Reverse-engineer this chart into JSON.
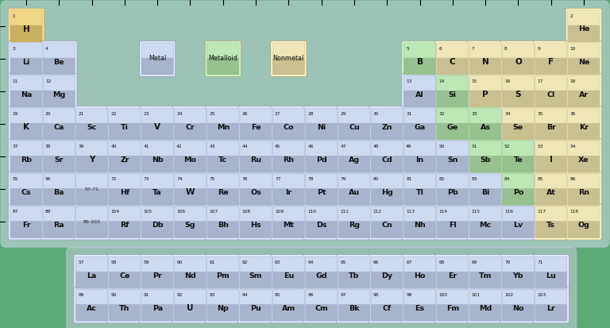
{
  "background_color": "#5aaa78",
  "metal_color_top": "#c8d0e0",
  "metal_color_bot": "#a8b4cc",
  "nonmetal_color_top": "#e0d8a8",
  "nonmetal_color_bot": "#c8c090",
  "metalloid_color_top": "#b8d8b0",
  "metalloid_color_bot": "#98c090",
  "h_color_top": "#e8d898",
  "h_color_bot": "#c8b870",
  "he_color_top": "#e0d8a8",
  "he_color_bot": "#c8c090",
  "elements": [
    {
      "symbol": "H",
      "number": 1,
      "row": 1,
      "col": 1,
      "type": "h"
    },
    {
      "symbol": "He",
      "number": 2,
      "row": 1,
      "col": 18,
      "type": "nonmetal"
    },
    {
      "symbol": "Li",
      "number": 3,
      "row": 2,
      "col": 1,
      "type": "metal"
    },
    {
      "symbol": "Be",
      "number": 4,
      "row": 2,
      "col": 2,
      "type": "metal"
    },
    {
      "symbol": "B",
      "number": 5,
      "row": 2,
      "col": 13,
      "type": "metalloid"
    },
    {
      "symbol": "C",
      "number": 6,
      "row": 2,
      "col": 14,
      "type": "nonmetal"
    },
    {
      "symbol": "N",
      "number": 7,
      "row": 2,
      "col": 15,
      "type": "nonmetal"
    },
    {
      "symbol": "O",
      "number": 8,
      "row": 2,
      "col": 16,
      "type": "nonmetal"
    },
    {
      "symbol": "F",
      "number": 9,
      "row": 2,
      "col": 17,
      "type": "nonmetal"
    },
    {
      "symbol": "Ne",
      "number": 10,
      "row": 2,
      "col": 18,
      "type": "nonmetal"
    },
    {
      "symbol": "Na",
      "number": 11,
      "row": 3,
      "col": 1,
      "type": "metal"
    },
    {
      "symbol": "Mg",
      "number": 12,
      "row": 3,
      "col": 2,
      "type": "metal"
    },
    {
      "symbol": "Al",
      "number": 13,
      "row": 3,
      "col": 13,
      "type": "metal"
    },
    {
      "symbol": "Si",
      "number": 14,
      "row": 3,
      "col": 14,
      "type": "metalloid"
    },
    {
      "symbol": "P",
      "number": 15,
      "row": 3,
      "col": 15,
      "type": "nonmetal"
    },
    {
      "symbol": "S",
      "number": 16,
      "row": 3,
      "col": 16,
      "type": "nonmetal"
    },
    {
      "symbol": "Cl",
      "number": 17,
      "row": 3,
      "col": 17,
      "type": "nonmetal"
    },
    {
      "symbol": "Ar",
      "number": 18,
      "row": 3,
      "col": 18,
      "type": "nonmetal"
    },
    {
      "symbol": "K",
      "number": 19,
      "row": 4,
      "col": 1,
      "type": "metal"
    },
    {
      "symbol": "Ca",
      "number": 20,
      "row": 4,
      "col": 2,
      "type": "metal"
    },
    {
      "symbol": "Sc",
      "number": 21,
      "row": 4,
      "col": 3,
      "type": "metal"
    },
    {
      "symbol": "Ti",
      "number": 22,
      "row": 4,
      "col": 4,
      "type": "metal"
    },
    {
      "symbol": "V",
      "number": 23,
      "row": 4,
      "col": 5,
      "type": "metal"
    },
    {
      "symbol": "Cr",
      "number": 24,
      "row": 4,
      "col": 6,
      "type": "metal"
    },
    {
      "symbol": "Mn",
      "number": 25,
      "row": 4,
      "col": 7,
      "type": "metal"
    },
    {
      "symbol": "Fe",
      "number": 26,
      "row": 4,
      "col": 8,
      "type": "metal"
    },
    {
      "symbol": "Co",
      "number": 27,
      "row": 4,
      "col": 9,
      "type": "metal"
    },
    {
      "symbol": "Ni",
      "number": 28,
      "row": 4,
      "col": 10,
      "type": "metal"
    },
    {
      "symbol": "Cu",
      "number": 29,
      "row": 4,
      "col": 11,
      "type": "metal"
    },
    {
      "symbol": "Zn",
      "number": 30,
      "row": 4,
      "col": 12,
      "type": "metal"
    },
    {
      "symbol": "Ga",
      "number": 31,
      "row": 4,
      "col": 13,
      "type": "metal"
    },
    {
      "symbol": "Ge",
      "number": 32,
      "row": 4,
      "col": 14,
      "type": "metalloid"
    },
    {
      "symbol": "As",
      "number": 33,
      "row": 4,
      "col": 15,
      "type": "metalloid"
    },
    {
      "symbol": "Se",
      "number": 34,
      "row": 4,
      "col": 16,
      "type": "nonmetal"
    },
    {
      "symbol": "Br",
      "number": 35,
      "row": 4,
      "col": 17,
      "type": "nonmetal"
    },
    {
      "symbol": "Kr",
      "number": 36,
      "row": 4,
      "col": 18,
      "type": "nonmetal"
    },
    {
      "symbol": "Rb",
      "number": 37,
      "row": 5,
      "col": 1,
      "type": "metal"
    },
    {
      "symbol": "Sr",
      "number": 38,
      "row": 5,
      "col": 2,
      "type": "metal"
    },
    {
      "symbol": "Y",
      "number": 39,
      "row": 5,
      "col": 3,
      "type": "metal"
    },
    {
      "symbol": "Zr",
      "number": 40,
      "row": 5,
      "col": 4,
      "type": "metal"
    },
    {
      "symbol": "Nb",
      "number": 41,
      "row": 5,
      "col": 5,
      "type": "metal"
    },
    {
      "symbol": "Mo",
      "number": 42,
      "row": 5,
      "col": 6,
      "type": "metal"
    },
    {
      "symbol": "Tc",
      "number": 43,
      "row": 5,
      "col": 7,
      "type": "metal"
    },
    {
      "symbol": "Ru",
      "number": 44,
      "row": 5,
      "col": 8,
      "type": "metal"
    },
    {
      "symbol": "Rh",
      "number": 45,
      "row": 5,
      "col": 9,
      "type": "metal"
    },
    {
      "symbol": "Pd",
      "number": 46,
      "row": 5,
      "col": 10,
      "type": "metal"
    },
    {
      "symbol": "Ag",
      "number": 47,
      "row": 5,
      "col": 11,
      "type": "metal"
    },
    {
      "symbol": "Cd",
      "number": 48,
      "row": 5,
      "col": 12,
      "type": "metal"
    },
    {
      "symbol": "In",
      "number": 49,
      "row": 5,
      "col": 13,
      "type": "metal"
    },
    {
      "symbol": "Sn",
      "number": 50,
      "row": 5,
      "col": 14,
      "type": "metal"
    },
    {
      "symbol": "Sb",
      "number": 51,
      "row": 5,
      "col": 15,
      "type": "metalloid"
    },
    {
      "symbol": "Te",
      "number": 52,
      "row": 5,
      "col": 16,
      "type": "metalloid"
    },
    {
      "symbol": "I",
      "number": 53,
      "row": 5,
      "col": 17,
      "type": "nonmetal"
    },
    {
      "symbol": "Xe",
      "number": 54,
      "row": 5,
      "col": 18,
      "type": "nonmetal"
    },
    {
      "symbol": "Cs",
      "number": 55,
      "row": 6,
      "col": 1,
      "type": "metal"
    },
    {
      "symbol": "Ba",
      "number": 56,
      "row": 6,
      "col": 2,
      "type": "metal"
    },
    {
      "symbol": "Hf",
      "number": 72,
      "row": 6,
      "col": 4,
      "type": "metal"
    },
    {
      "symbol": "Ta",
      "number": 73,
      "row": 6,
      "col": 5,
      "type": "metal"
    },
    {
      "symbol": "W",
      "number": 74,
      "row": 6,
      "col": 6,
      "type": "metal"
    },
    {
      "symbol": "Re",
      "number": 75,
      "row": 6,
      "col": 7,
      "type": "metal"
    },
    {
      "symbol": "Os",
      "number": 76,
      "row": 6,
      "col": 8,
      "type": "metal"
    },
    {
      "symbol": "Ir",
      "number": 77,
      "row": 6,
      "col": 9,
      "type": "metal"
    },
    {
      "symbol": "Pt",
      "number": 78,
      "row": 6,
      "col": 10,
      "type": "metal"
    },
    {
      "symbol": "Au",
      "number": 79,
      "row": 6,
      "col": 11,
      "type": "metal"
    },
    {
      "symbol": "Hg",
      "number": 80,
      "row": 6,
      "col": 12,
      "type": "metal"
    },
    {
      "symbol": "Tl",
      "number": 81,
      "row": 6,
      "col": 13,
      "type": "metal"
    },
    {
      "symbol": "Pb",
      "number": 82,
      "row": 6,
      "col": 14,
      "type": "metal"
    },
    {
      "symbol": "Bi",
      "number": 83,
      "row": 6,
      "col": 15,
      "type": "metal"
    },
    {
      "symbol": "Po",
      "number": 84,
      "row": 6,
      "col": 16,
      "type": "metalloid"
    },
    {
      "symbol": "At",
      "number": 85,
      "row": 6,
      "col": 17,
      "type": "nonmetal"
    },
    {
      "symbol": "Rn",
      "number": 86,
      "row": 6,
      "col": 18,
      "type": "nonmetal"
    },
    {
      "symbol": "Fr",
      "number": 87,
      "row": 7,
      "col": 1,
      "type": "metal"
    },
    {
      "symbol": "Ra",
      "number": 88,
      "row": 7,
      "col": 2,
      "type": "metal"
    },
    {
      "symbol": "Rf",
      "number": 104,
      "row": 7,
      "col": 4,
      "type": "metal"
    },
    {
      "symbol": "Db",
      "number": 105,
      "row": 7,
      "col": 5,
      "type": "metal"
    },
    {
      "symbol": "Sg",
      "number": 106,
      "row": 7,
      "col": 6,
      "type": "metal"
    },
    {
      "symbol": "Bh",
      "number": 107,
      "row": 7,
      "col": 7,
      "type": "metal"
    },
    {
      "symbol": "Hs",
      "number": 108,
      "row": 7,
      "col": 8,
      "type": "metal"
    },
    {
      "symbol": "Mt",
      "number": 109,
      "row": 7,
      "col": 9,
      "type": "metal"
    },
    {
      "symbol": "Ds",
      "number": 110,
      "row": 7,
      "col": 10,
      "type": "metal"
    },
    {
      "symbol": "Rg",
      "number": 111,
      "row": 7,
      "col": 11,
      "type": "metal"
    },
    {
      "symbol": "Cn",
      "number": 112,
      "row": 7,
      "col": 12,
      "type": "metal"
    },
    {
      "symbol": "Nh",
      "number": 113,
      "row": 7,
      "col": 13,
      "type": "metal"
    },
    {
      "symbol": "Fl",
      "number": 114,
      "row": 7,
      "col": 14,
      "type": "metal"
    },
    {
      "symbol": "Mc",
      "number": 115,
      "row": 7,
      "col": 15,
      "type": "metal"
    },
    {
      "symbol": "Lv",
      "number": 116,
      "row": 7,
      "col": 16,
      "type": "metal"
    },
    {
      "symbol": "Ts",
      "number": 117,
      "row": 7,
      "col": 17,
      "type": "nonmetal"
    },
    {
      "symbol": "Og",
      "number": 118,
      "row": 7,
      "col": 18,
      "type": "nonmetal"
    },
    {
      "symbol": "La",
      "number": 57,
      "row": 9,
      "col": 3,
      "type": "metal"
    },
    {
      "symbol": "Ce",
      "number": 58,
      "row": 9,
      "col": 4,
      "type": "metal"
    },
    {
      "symbol": "Pr",
      "number": 59,
      "row": 9,
      "col": 5,
      "type": "metal"
    },
    {
      "symbol": "Nd",
      "number": 60,
      "row": 9,
      "col": 6,
      "type": "metal"
    },
    {
      "symbol": "Pm",
      "number": 61,
      "row": 9,
      "col": 7,
      "type": "metal"
    },
    {
      "symbol": "Sm",
      "number": 62,
      "row": 9,
      "col": 8,
      "type": "metal"
    },
    {
      "symbol": "Eu",
      "number": 63,
      "row": 9,
      "col": 9,
      "type": "metal"
    },
    {
      "symbol": "Gd",
      "number": 64,
      "row": 9,
      "col": 10,
      "type": "metal"
    },
    {
      "symbol": "Tb",
      "number": 65,
      "row": 9,
      "col": 11,
      "type": "metal"
    },
    {
      "symbol": "Dy",
      "number": 66,
      "row": 9,
      "col": 12,
      "type": "metal"
    },
    {
      "symbol": "Ho",
      "number": 67,
      "row": 9,
      "col": 13,
      "type": "metal"
    },
    {
      "symbol": "Er",
      "number": 68,
      "row": 9,
      "col": 14,
      "type": "metal"
    },
    {
      "symbol": "Tm",
      "number": 69,
      "row": 9,
      "col": 15,
      "type": "metal"
    },
    {
      "symbol": "Yb",
      "number": 70,
      "row": 9,
      "col": 16,
      "type": "metal"
    },
    {
      "symbol": "Lu",
      "number": 71,
      "row": 9,
      "col": 17,
      "type": "metal"
    },
    {
      "symbol": "Ac",
      "number": 89,
      "row": 10,
      "col": 3,
      "type": "metal"
    },
    {
      "symbol": "Th",
      "number": 90,
      "row": 10,
      "col": 4,
      "type": "metal"
    },
    {
      "symbol": "Pa",
      "number": 91,
      "row": 10,
      "col": 5,
      "type": "metal"
    },
    {
      "symbol": "U",
      "number": 92,
      "row": 10,
      "col": 6,
      "type": "metal"
    },
    {
      "symbol": "Np",
      "number": 93,
      "row": 10,
      "col": 7,
      "type": "metal"
    },
    {
      "symbol": "Pu",
      "number": 94,
      "row": 10,
      "col": 8,
      "type": "metal"
    },
    {
      "symbol": "Am",
      "number": 95,
      "row": 10,
      "col": 9,
      "type": "metal"
    },
    {
      "symbol": "Cm",
      "number": 96,
      "row": 10,
      "col": 10,
      "type": "metal"
    },
    {
      "symbol": "Bk",
      "number": 97,
      "row": 10,
      "col": 11,
      "type": "metal"
    },
    {
      "symbol": "Cf",
      "number": 98,
      "row": 10,
      "col": 12,
      "type": "metal"
    },
    {
      "symbol": "Es",
      "number": 99,
      "row": 10,
      "col": 13,
      "type": "metal"
    },
    {
      "symbol": "Fm",
      "number": 100,
      "row": 10,
      "col": 14,
      "type": "metal"
    },
    {
      "symbol": "Md",
      "number": 101,
      "row": 10,
      "col": 15,
      "type": "metal"
    },
    {
      "symbol": "No",
      "number": 102,
      "row": 10,
      "col": 16,
      "type": "metal"
    },
    {
      "symbol": "Lr",
      "number": 103,
      "row": 10,
      "col": 17,
      "type": "metal"
    }
  ],
  "legend": [
    {
      "label": "Metal",
      "col": 5,
      "row": 2,
      "type": "metal"
    },
    {
      "label": "Metalloid",
      "col": 7,
      "row": 2,
      "type": "metalloid"
    },
    {
      "label": "Nonmetal",
      "col": 9,
      "row": 2,
      "type": "nonmetal"
    }
  ],
  "placeholders": [
    {
      "label": "57-71",
      "row": 6,
      "col": 3
    },
    {
      "label": "89-103",
      "row": 7,
      "col": 3
    }
  ]
}
